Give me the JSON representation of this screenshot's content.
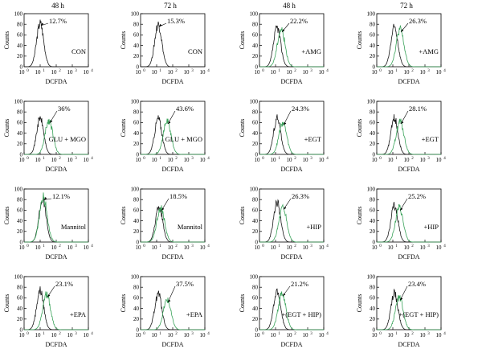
{
  "column_headers": [
    "48 h",
    "72 h",
    "48 h",
    "72 h"
  ],
  "colors": {
    "control_trace": "#1a1a1a",
    "treatment_trace": "#3aa35a"
  },
  "chart_data": [
    {
      "type": "line",
      "row": 0,
      "col": 0,
      "condition": "CON",
      "percentage": "12.7%",
      "treated": false,
      "xlabel": "DCFDA",
      "ylabel": "Counts",
      "xlim_log10": [
        0,
        4
      ],
      "ylim": [
        0,
        100
      ],
      "yticks": [
        0,
        20,
        40,
        60,
        80,
        100
      ],
      "xticks": [
        "10",
        "10",
        "10",
        "10",
        "10"
      ],
      "xtick_exponents": [
        "0",
        "1",
        "2",
        "3",
        "4"
      ],
      "control_peak_log10": 1.0,
      "control_peak_counts": 82
    },
    {
      "type": "line",
      "row": 0,
      "col": 1,
      "condition": "CON",
      "percentage": "15.3%",
      "treated": false,
      "xlabel": "DCFDA",
      "ylabel": "Counts",
      "xlim_log10": [
        0,
        4
      ],
      "ylim": [
        0,
        100
      ],
      "yticks": [
        0,
        20,
        40,
        60,
        80,
        100
      ],
      "xticks": [
        "10",
        "10",
        "10",
        "10",
        "10"
      ],
      "xtick_exponents": [
        "0",
        "1",
        "2",
        "3",
        "4"
      ],
      "control_peak_log10": 1.1,
      "control_peak_counts": 80
    },
    {
      "type": "line",
      "row": 0,
      "col": 2,
      "condition": "+AMG",
      "percentage": "22.2%",
      "treated": true,
      "xlabel": "DCFDA",
      "ylabel": "Counts",
      "xlim_log10": [
        0,
        4
      ],
      "ylim": [
        0,
        100
      ],
      "yticks": [
        0,
        20,
        40,
        60,
        80,
        100
      ],
      "xticks": [
        "10",
        "10",
        "10",
        "10",
        "10"
      ],
      "xtick_exponents": [
        "0",
        "1",
        "2",
        "3",
        "4"
      ],
      "control_peak_log10": 1.1,
      "control_peak_counts": 74,
      "treated_peak_log10": 1.35,
      "treated_peak_counts": 70
    },
    {
      "type": "line",
      "row": 0,
      "col": 3,
      "condition": "+AMG",
      "percentage": "26.3%",
      "treated": true,
      "xlabel": "DCFDA",
      "ylabel": "Counts",
      "xlim_log10": [
        0,
        4
      ],
      "ylim": [
        0,
        100
      ],
      "yticks": [
        0,
        20,
        40,
        60,
        80,
        100
      ],
      "xticks": [
        "10",
        "10",
        "10",
        "10",
        "10"
      ],
      "xtick_exponents": [
        "0",
        "1",
        "2",
        "3",
        "4"
      ],
      "control_peak_log10": 1.1,
      "control_peak_counts": 74,
      "treated_peak_log10": 1.45,
      "treated_peak_counts": 70
    },
    {
      "type": "line",
      "row": 1,
      "col": 0,
      "condition": "GLU + MGO",
      "percentage": "36%",
      "treated": true,
      "xlabel": "DCFDA",
      "ylabel": "Counts",
      "xlim_log10": [
        0,
        4
      ],
      "ylim": [
        0,
        100
      ],
      "yticks": [
        0,
        20,
        40,
        60,
        80,
        100
      ],
      "xticks": [
        "10",
        "10",
        "10",
        "10",
        "10"
      ],
      "xtick_exponents": [
        "0",
        "1",
        "2",
        "3",
        "4"
      ],
      "control_peak_log10": 1.0,
      "control_peak_counts": 68,
      "treated_peak_log10": 1.55,
      "treated_peak_counts": 64
    },
    {
      "type": "line",
      "row": 1,
      "col": 1,
      "condition": "GLU + MGO",
      "percentage": "43.6%",
      "treated": true,
      "xlabel": "DCFDA",
      "ylabel": "Counts",
      "xlim_log10": [
        0,
        4
      ],
      "ylim": [
        0,
        100
      ],
      "yticks": [
        0,
        20,
        40,
        60,
        80,
        100
      ],
      "xticks": [
        "10",
        "10",
        "10",
        "10",
        "10"
      ],
      "xtick_exponents": [
        "0",
        "1",
        "2",
        "3",
        "4"
      ],
      "control_peak_log10": 1.1,
      "control_peak_counts": 68,
      "treated_peak_log10": 1.65,
      "treated_peak_counts": 62
    },
    {
      "type": "line",
      "row": 1,
      "col": 2,
      "condition": "+EGT",
      "percentage": "24.3%",
      "treated": true,
      "xlabel": "DCFDA",
      "ylabel": "Counts",
      "xlim_log10": [
        0,
        4
      ],
      "ylim": [
        0,
        100
      ],
      "yticks": [
        0,
        20,
        40,
        60,
        80,
        100
      ],
      "xticks": [
        "10",
        "10",
        "10",
        "10",
        "10"
      ],
      "xtick_exponents": [
        "0",
        "1",
        "2",
        "3",
        "4"
      ],
      "control_peak_log10": 1.1,
      "control_peak_counts": 68,
      "treated_peak_log10": 1.45,
      "treated_peak_counts": 60
    },
    {
      "type": "line",
      "row": 1,
      "col": 3,
      "condition": "+EGT",
      "percentage": "28.1%",
      "treated": true,
      "xlabel": "DCFDA",
      "ylabel": "Counts",
      "xlim_log10": [
        0,
        4
      ],
      "ylim": [
        0,
        100
      ],
      "yticks": [
        0,
        20,
        40,
        60,
        80,
        100
      ],
      "xticks": [
        "10",
        "10",
        "10",
        "10",
        "10"
      ],
      "xtick_exponents": [
        "0",
        "1",
        "2",
        "3",
        "4"
      ],
      "control_peak_log10": 1.1,
      "control_peak_counts": 68,
      "treated_peak_log10": 1.45,
      "treated_peak_counts": 62
    },
    {
      "type": "line",
      "row": 2,
      "col": 0,
      "condition": "Mannitol",
      "percentage": "12.1%",
      "treated": true,
      "xlabel": "DCFDA",
      "ylabel": "Counts",
      "xlim_log10": [
        0,
        4
      ],
      "ylim": [
        0,
        100
      ],
      "yticks": [
        0,
        20,
        40,
        60,
        80,
        100
      ],
      "xticks": [
        "10",
        "10",
        "10",
        "10",
        "10"
      ],
      "xtick_exponents": [
        "0",
        "1",
        "2",
        "3",
        "4"
      ],
      "control_peak_log10": 1.15,
      "control_peak_counts": 82,
      "treated_peak_log10": 1.2,
      "treated_peak_counts": 84
    },
    {
      "type": "line",
      "row": 2,
      "col": 1,
      "condition": "Mannitol",
      "percentage": "18.5%",
      "treated": true,
      "xlabel": "DCFDA",
      "ylabel": "Counts",
      "xlim_log10": [
        0,
        4
      ],
      "ylim": [
        0,
        100
      ],
      "yticks": [
        0,
        20,
        40,
        60,
        80,
        100
      ],
      "xticks": [
        "10",
        "10",
        "10",
        "10",
        "10"
      ],
      "xtick_exponents": [
        "0",
        "1",
        "2",
        "3",
        "4"
      ],
      "control_peak_log10": 1.15,
      "control_peak_counts": 68,
      "treated_peak_log10": 1.25,
      "treated_peak_counts": 64
    },
    {
      "type": "line",
      "row": 2,
      "col": 2,
      "condition": "+HIP",
      "percentage": "26.3%",
      "treated": true,
      "xlabel": "DCFDA",
      "ylabel": "Counts",
      "xlim_log10": [
        0,
        4
      ],
      "ylim": [
        0,
        100
      ],
      "yticks": [
        0,
        20,
        40,
        60,
        80,
        100
      ],
      "xticks": [
        "10",
        "10",
        "10",
        "10",
        "10"
      ],
      "xtick_exponents": [
        "0",
        "1",
        "2",
        "3",
        "4"
      ],
      "control_peak_log10": 1.1,
      "control_peak_counts": 74,
      "treated_peak_log10": 1.45,
      "treated_peak_counts": 66
    },
    {
      "type": "line",
      "row": 2,
      "col": 3,
      "condition": "+HIP",
      "percentage": "25.2%",
      "treated": true,
      "xlabel": "DCFDA",
      "ylabel": "Counts",
      "xlim_log10": [
        0,
        4
      ],
      "ylim": [
        0,
        100
      ],
      "yticks": [
        0,
        20,
        40,
        60,
        80,
        100
      ],
      "xticks": [
        "10",
        "10",
        "10",
        "10",
        "10"
      ],
      "xtick_exponents": [
        "0",
        "1",
        "2",
        "3",
        "4"
      ],
      "control_peak_log10": 1.1,
      "control_peak_counts": 68,
      "treated_peak_log10": 1.4,
      "treated_peak_counts": 64
    },
    {
      "type": "line",
      "row": 3,
      "col": 0,
      "condition": "+EPA",
      "percentage": "23.1%",
      "treated": true,
      "xlabel": "DCFDA",
      "ylabel": "Counts",
      "xlim_log10": [
        0,
        4
      ],
      "ylim": [
        0,
        100
      ],
      "yticks": [
        0,
        20,
        40,
        60,
        80,
        100
      ],
      "xticks": [
        "10",
        "10",
        "10",
        "10",
        "10"
      ],
      "xtick_exponents": [
        "0",
        "1",
        "2",
        "3",
        "4"
      ],
      "control_peak_log10": 1.0,
      "control_peak_counts": 74,
      "treated_peak_log10": 1.4,
      "treated_peak_counts": 66
    },
    {
      "type": "line",
      "row": 3,
      "col": 1,
      "condition": "+EPA",
      "percentage": "37.5%",
      "treated": true,
      "xlabel": "DCFDA",
      "ylabel": "Counts",
      "xlim_log10": [
        0,
        4
      ],
      "ylim": [
        0,
        100
      ],
      "yticks": [
        0,
        20,
        40,
        60,
        80,
        100
      ],
      "xticks": [
        "10",
        "10",
        "10",
        "10",
        "10"
      ],
      "xtick_exponents": [
        "0",
        "1",
        "2",
        "3",
        "4"
      ],
      "control_peak_log10": 1.1,
      "control_peak_counts": 68,
      "treated_peak_log10": 1.65,
      "treated_peak_counts": 56
    },
    {
      "type": "line",
      "row": 3,
      "col": 2,
      "condition": "+(EGT + HIP)",
      "percentage": "21.2%",
      "treated": true,
      "xlabel": "DCFDA",
      "ylabel": "Counts",
      "xlim_log10": [
        0,
        4
      ],
      "ylim": [
        0,
        100
      ],
      "yticks": [
        0,
        20,
        40,
        60,
        80,
        100
      ],
      "xticks": [
        "10",
        "10",
        "10",
        "10",
        "10"
      ],
      "xtick_exponents": [
        "0",
        "1",
        "2",
        "3",
        "4"
      ],
      "control_peak_log10": 1.1,
      "control_peak_counts": 72,
      "treated_peak_log10": 1.4,
      "treated_peak_counts": 68
    },
    {
      "type": "line",
      "row": 3,
      "col": 3,
      "condition": "+(EGT + HIP)",
      "percentage": "23.4%",
      "treated": true,
      "xlabel": "DCFDA",
      "ylabel": "Counts",
      "xlim_log10": [
        0,
        4
      ],
      "ylim": [
        0,
        100
      ],
      "yticks": [
        0,
        20,
        40,
        60,
        80,
        100
      ],
      "xticks": [
        "10",
        "10",
        "10",
        "10",
        "10"
      ],
      "xtick_exponents": [
        "0",
        "1",
        "2",
        "3",
        "4"
      ],
      "control_peak_log10": 1.1,
      "control_peak_counts": 68,
      "treated_peak_log10": 1.4,
      "treated_peak_counts": 60
    }
  ]
}
